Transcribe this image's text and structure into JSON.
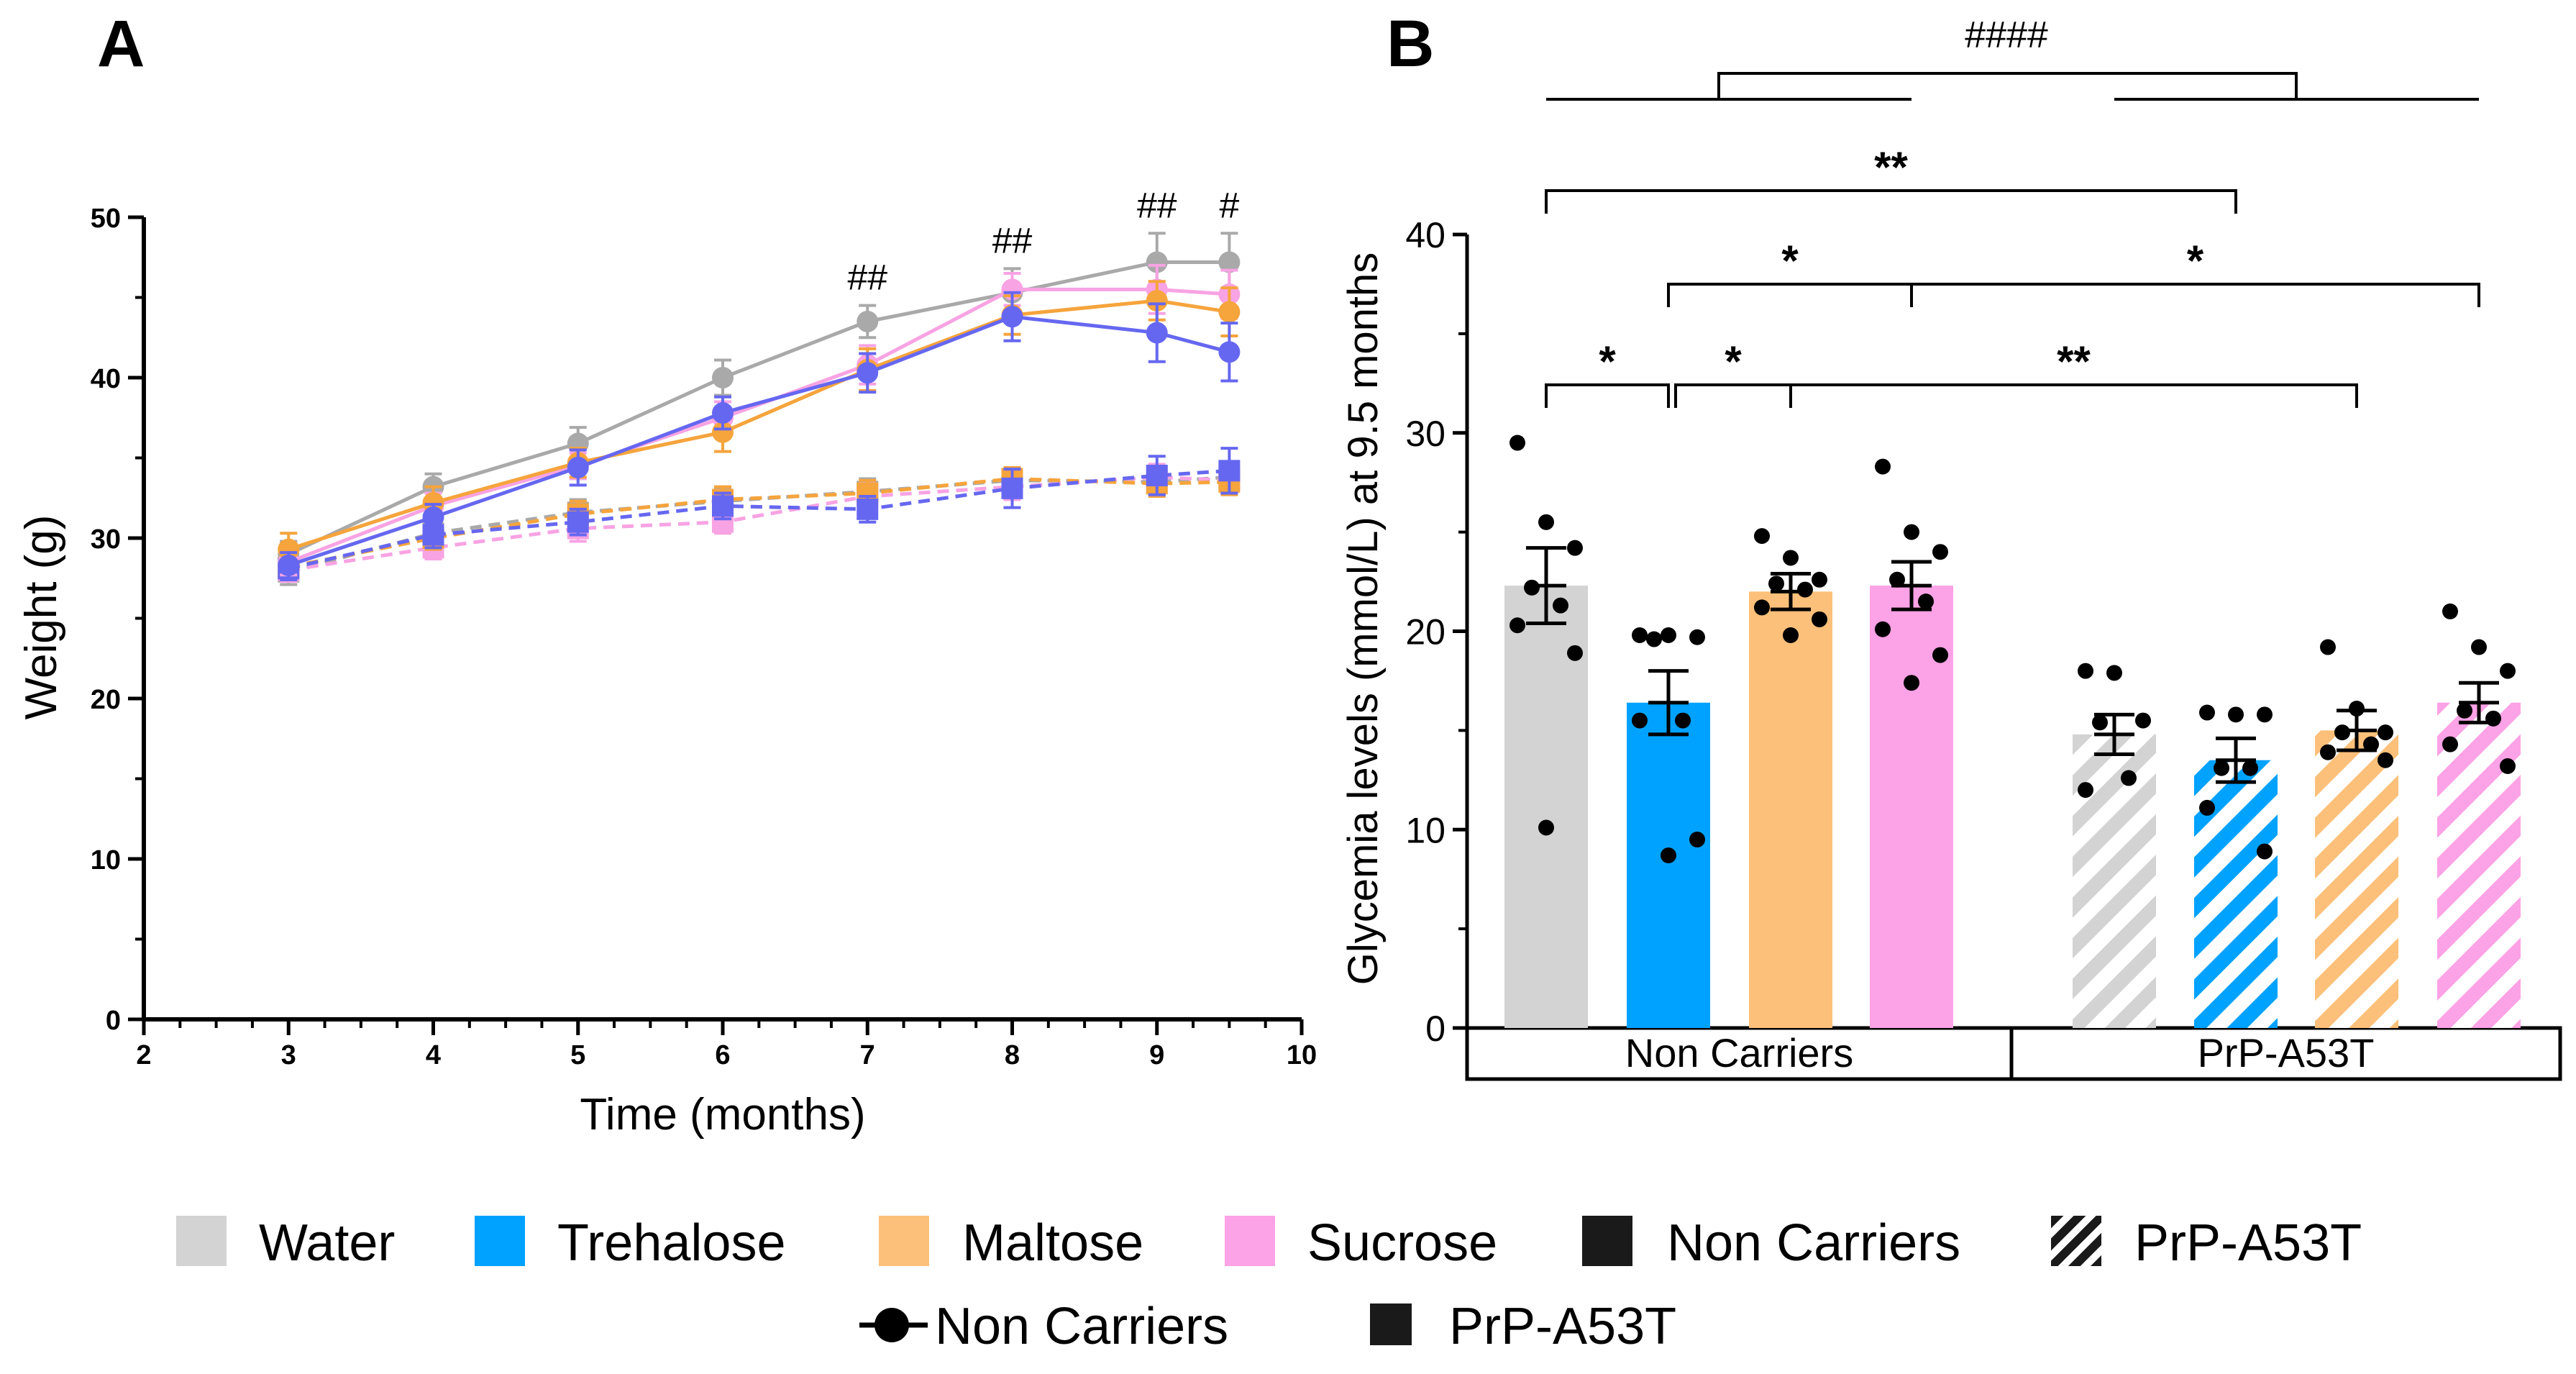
{
  "colors": {
    "water": "#a9a9a9",
    "water_fill": "#d3d3d3",
    "trehalose": "#6667f0",
    "trehalose_fill": "#00a2ff",
    "maltose": "#f6a43c",
    "maltose_fill": "#fcc07a",
    "sucrose": "#f8a3e3",
    "sucrose_fill": "#fca2e6",
    "black": "#000000"
  },
  "chart_data": [
    {
      "panel_label": "A",
      "type": "line",
      "xlabel": "Time (months)",
      "ylabel": "Weight (g)",
      "xlim": [
        2,
        10
      ],
      "ylim": [
        0,
        50
      ],
      "x_ticks": [
        "2",
        "3",
        "4",
        "5",
        "6",
        "7",
        "8",
        "9",
        "10"
      ],
      "y_ticks": [
        "0",
        "10",
        "20",
        "30",
        "40",
        "50"
      ],
      "x": [
        3,
        4,
        5,
        6,
        7,
        8,
        9,
        9.5
      ],
      "series": [
        {
          "name": "Water Non Carriers",
          "color_key": "water",
          "dashed": false,
          "marker": "circle",
          "values": [
            29.0,
            33.2,
            35.9,
            40.0,
            43.5,
            45.3,
            47.2,
            47.2
          ],
          "err": [
            0.8,
            0.8,
            1.0,
            1.1,
            1.0,
            1.5,
            1.8,
            1.8
          ]
        },
        {
          "name": "Sucrose Non Carriers",
          "color_key": "sucrose",
          "dashed": false,
          "marker": "circle",
          "values": [
            28.5,
            32.0,
            34.5,
            37.5,
            40.8,
            45.5,
            45.5,
            45.2
          ],
          "err": [
            0.8,
            0.8,
            0.8,
            1.0,
            1.2,
            1.0,
            1.5,
            1.5
          ]
        },
        {
          "name": "Maltose Non Carriers",
          "color_key": "maltose",
          "dashed": false,
          "marker": "circle",
          "values": [
            29.3,
            32.2,
            34.7,
            36.6,
            40.5,
            43.9,
            44.8,
            44.1
          ],
          "err": [
            1.0,
            1.0,
            0.9,
            1.2,
            1.3,
            1.2,
            1.2,
            1.5
          ]
        },
        {
          "name": "Trehalose Non Carriers",
          "color_key": "trehalose",
          "dashed": false,
          "marker": "circle",
          "values": [
            28.3,
            31.3,
            34.4,
            37.8,
            40.3,
            43.8,
            42.8,
            41.6
          ],
          "err": [
            0.8,
            0.8,
            1.1,
            1.0,
            1.2,
            1.5,
            1.8,
            1.8
          ]
        },
        {
          "name": "Water PrP-A53T",
          "color_key": "water",
          "dashed": true,
          "marker": "square",
          "values": [
            27.9,
            30.3,
            31.6,
            32.3,
            32.9,
            33.6,
            33.5,
            33.8
          ],
          "err": [
            0.8,
            0.7,
            0.8,
            0.8,
            0.8,
            0.7,
            0.8,
            0.8
          ]
        },
        {
          "name": "Sucrose PrP-A53T",
          "color_key": "sucrose",
          "dashed": true,
          "marker": "square",
          "values": [
            28.0,
            29.4,
            30.6,
            31.0,
            32.6,
            33.2,
            33.8,
            33.6
          ],
          "err": [
            0.7,
            0.7,
            0.8,
            0.7,
            0.8,
            0.8,
            0.8,
            0.8
          ]
        },
        {
          "name": "Maltose PrP-A53T",
          "color_key": "maltose",
          "dashed": true,
          "marker": "square",
          "values": [
            28.2,
            30.0,
            31.5,
            32.4,
            32.8,
            33.7,
            33.4,
            33.5
          ],
          "err": [
            0.7,
            0.7,
            0.8,
            0.8,
            0.8,
            0.7,
            0.8,
            0.8
          ]
        },
        {
          "name": "Trehalose PrP-A53T",
          "color_key": "trehalose",
          "dashed": true,
          "marker": "square",
          "values": [
            28.1,
            30.2,
            31.0,
            32.0,
            31.8,
            33.1,
            33.9,
            34.2
          ],
          "err": [
            0.7,
            0.8,
            0.8,
            0.8,
            0.8,
            1.2,
            1.2,
            1.4
          ]
        }
      ],
      "annotations": [
        {
          "x": 7,
          "text": "##"
        },
        {
          "x": 8,
          "text": "##"
        },
        {
          "x": 9,
          "text": "##"
        },
        {
          "x": 9.5,
          "text": "#"
        }
      ]
    },
    {
      "panel_label": "B",
      "type": "bar",
      "ylabel": "Glycemia levels (mmol/L) at 9.5 months",
      "ylim": [
        0,
        40
      ],
      "y_ticks": [
        "0",
        "10",
        "20",
        "30",
        "40"
      ],
      "groups": [
        "Non Carriers",
        "PrP-A53T"
      ],
      "bars": [
        {
          "group": "Non Carriers",
          "treatment": "Water",
          "color_key": "water_fill",
          "hatched": false,
          "value": 22.3,
          "sem": 1.9,
          "points": [
            29.5,
            25.5,
            24.2,
            22.2,
            21.3,
            20.3,
            18.9,
            10.1
          ]
        },
        {
          "group": "Non Carriers",
          "treatment": "Trehalose",
          "color_key": "trehalose_fill",
          "hatched": false,
          "value": 16.4,
          "sem": 1.6,
          "points": [
            19.8,
            19.8,
            19.7,
            19.6,
            15.5,
            15.5,
            9.5,
            8.7
          ]
        },
        {
          "group": "Non Carriers",
          "treatment": "Maltose",
          "color_key": "maltose_fill",
          "hatched": false,
          "value": 22.0,
          "sem": 0.9,
          "points": [
            24.8,
            23.7,
            22.6,
            22.4,
            22.1,
            21.2,
            20.6,
            19.8
          ]
        },
        {
          "group": "Non Carriers",
          "treatment": "Sucrose",
          "color_key": "sucrose_fill",
          "hatched": false,
          "value": 22.3,
          "sem": 1.2,
          "points": [
            28.3,
            25.0,
            24.0,
            22.6,
            21.5,
            20.1,
            18.8,
            17.4
          ]
        },
        {
          "group": "PrP-A53T",
          "treatment": "Water",
          "color_key": "water_fill",
          "hatched": true,
          "value": 14.8,
          "sem": 1.0,
          "points": [
            18.0,
            17.9,
            15.5,
            15.4,
            12.6,
            12.0
          ]
        },
        {
          "group": "PrP-A53T",
          "treatment": "Trehalose",
          "color_key": "trehalose_fill",
          "hatched": true,
          "value": 13.5,
          "sem": 1.1,
          "points": [
            15.9,
            15.8,
            15.8,
            13.1,
            13.1,
            11.1,
            8.9
          ]
        },
        {
          "group": "PrP-A53T",
          "treatment": "Maltose",
          "color_key": "maltose_fill",
          "hatched": true,
          "value": 15.0,
          "sem": 1.0,
          "points": [
            19.2,
            16.1,
            14.9,
            14.9,
            14.3,
            13.9,
            13.5
          ]
        },
        {
          "group": "PrP-A53T",
          "treatment": "Sucrose",
          "color_key": "sucrose_fill",
          "hatched": true,
          "value": 16.4,
          "sem": 1.0,
          "points": [
            21.0,
            19.2,
            18.0,
            16.0,
            15.6,
            14.3,
            13.2
          ]
        }
      ],
      "comparisons": [
        {
          "from": 0,
          "to": 1,
          "text": "*"
        },
        {
          "from": 1,
          "to": 2,
          "text": "*"
        },
        {
          "from": 1,
          "to": 3,
          "text": "*"
        },
        {
          "from": 2,
          "to": 6,
          "text": "**"
        },
        {
          "from": 3,
          "to": 7,
          "text": "*"
        },
        {
          "from": 0,
          "to": 5,
          "text": "**"
        }
      ],
      "group_comparison": {
        "text": "####"
      }
    }
  ],
  "legend": {
    "row1": [
      "Water",
      "Trehalose",
      "Maltose",
      "Sucrose",
      "Non Carriers",
      "PrP-A53T"
    ],
    "row2": [
      "Non Carriers",
      "PrP-A53T"
    ]
  }
}
